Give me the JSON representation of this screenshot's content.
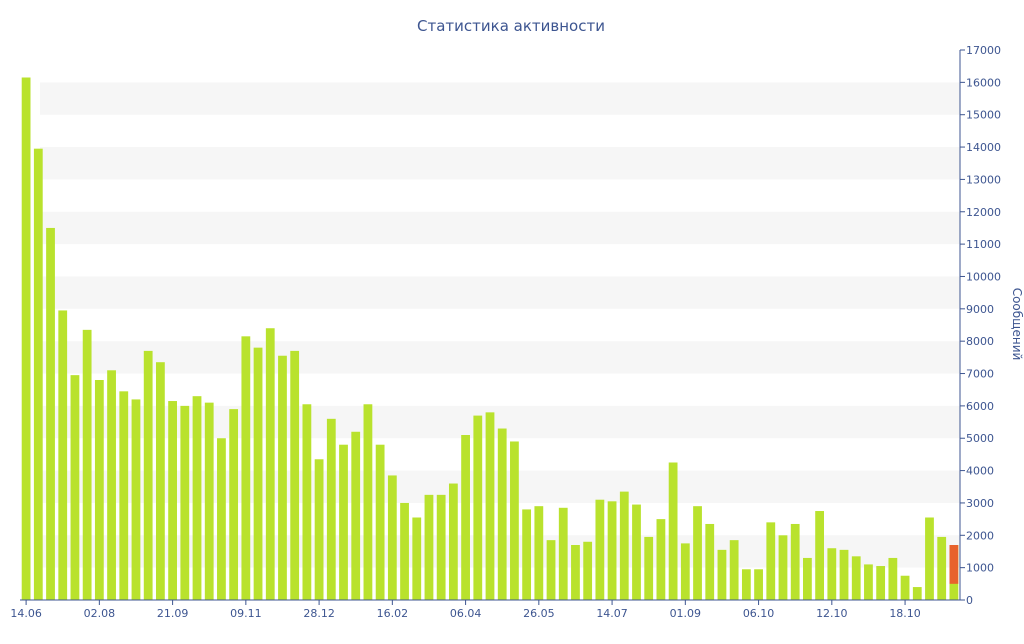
{
  "chart_data": {
    "type": "bar",
    "title": "Статистика активности",
    "ylabel": "Сообщений",
    "xlabel": "",
    "ylim": [
      0,
      17000
    ],
    "y_ticks": [
      0,
      1000,
      2000,
      3000,
      4000,
      5000,
      6000,
      7000,
      8000,
      9000,
      10000,
      11000,
      12000,
      13000,
      14000,
      15000,
      16000,
      17000
    ],
    "x_tick_labels": [
      {
        "index": 0,
        "label": "14.06"
      },
      {
        "index": 6,
        "label": "02.08"
      },
      {
        "index": 12,
        "label": "21.09"
      },
      {
        "index": 18,
        "label": "09.11"
      },
      {
        "index": 24,
        "label": "28.12"
      },
      {
        "index": 30,
        "label": "16.02"
      },
      {
        "index": 36,
        "label": "06.04"
      },
      {
        "index": 42,
        "label": "26.05"
      },
      {
        "index": 48,
        "label": "14.07"
      },
      {
        "index": 54,
        "label": "01.09"
      },
      {
        "index": 60,
        "label": "06.10"
      },
      {
        "index": 66,
        "label": "12.10"
      },
      {
        "index": 72,
        "label": "18.10"
      }
    ],
    "values": [
      16150,
      13950,
      11500,
      8950,
      6950,
      8350,
      6800,
      7100,
      6450,
      6200,
      7700,
      7350,
      6150,
      6000,
      6300,
      6100,
      5000,
      5900,
      8150,
      7800,
      8400,
      7550,
      7700,
      6050,
      4350,
      5600,
      4800,
      5200,
      6050,
      4800,
      3850,
      3000,
      2550,
      3250,
      3250,
      3600,
      5100,
      5700,
      5800,
      5300,
      4900,
      2800,
      2900,
      1850,
      2850,
      1700,
      1800,
      3100,
      3050,
      3350,
      2950,
      1950,
      2500,
      4250,
      1750,
      2900,
      2350,
      1550,
      1850,
      950,
      950,
      2400,
      2000,
      2350,
      1300,
      2750,
      1600,
      1550,
      1350,
      1100,
      1050,
      1300,
      750,
      400,
      2550,
      1950,
      1700
    ],
    "highlight": {
      "index": 76,
      "base": 500,
      "color": "#e8622c"
    },
    "colors": {
      "bar": "#b9e22d",
      "highlight": "#e8622c",
      "text": "#3d5590",
      "band": "#f6f6f6",
      "axis": "#3d5590"
    },
    "grid": "alternating-bands",
    "y_axis_side": "right"
  }
}
